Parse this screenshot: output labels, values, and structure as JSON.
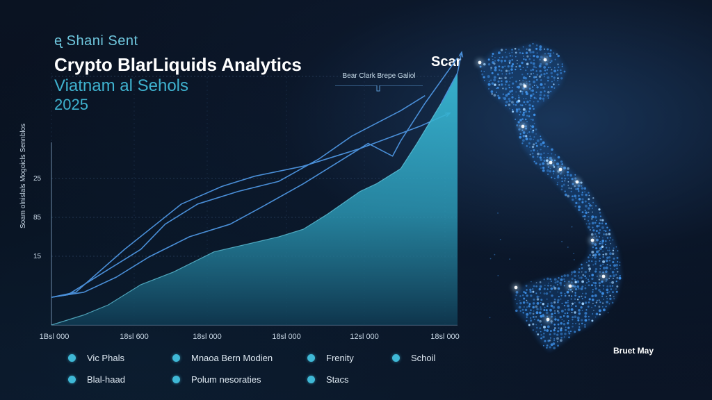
{
  "header": {
    "small_title": "ᶒ Shani Sent",
    "main_title": "Crypto BlarLiquids Analytics",
    "subtitle": "Viatnam al Sehols",
    "year": "2025"
  },
  "callout": {
    "heading": "Scar",
    "text": "Bear Clark Brepe Galiol"
  },
  "map": {
    "label": "Bruet May"
  },
  "colors": {
    "background": "#070d19",
    "line": "#4a8fd8",
    "area": "#2fa6c4",
    "dot": "#3fb8d6",
    "map_dot": "#3d8fe6"
  },
  "chart_data": {
    "type": "area",
    "ylabel": "Soam olnislals  Mogoicls Sennblos",
    "y_ticks": [
      "25",
      "85",
      "15"
    ],
    "x_ticks": [
      "1Bsl 000",
      "18sl 600",
      "18sl 000",
      "18sl 000",
      "12sl 000",
      "18sl 000"
    ],
    "xlim": [
      0,
      100
    ],
    "ylim": [
      0,
      100
    ],
    "grid": true,
    "series": [
      {
        "kind": "line",
        "arrow": true,
        "points": [
          [
            0,
            11
          ],
          [
            6,
            13
          ],
          [
            18,
            30
          ],
          [
            32,
            48
          ],
          [
            42,
            55
          ],
          [
            50,
            59
          ],
          [
            62,
            63
          ],
          [
            72,
            68
          ],
          [
            76,
            70
          ],
          [
            91,
            79
          ],
          [
            98,
            84
          ]
        ]
      },
      {
        "kind": "line",
        "arrow": false,
        "points": [
          [
            0,
            11
          ],
          [
            4,
            12
          ],
          [
            14,
            22
          ],
          [
            22,
            30
          ],
          [
            28,
            40
          ],
          [
            36,
            48
          ],
          [
            46,
            53
          ],
          [
            56,
            57
          ],
          [
            66,
            66
          ],
          [
            74,
            75
          ],
          [
            80,
            80
          ],
          [
            86,
            85
          ],
          [
            92,
            91
          ]
        ]
      },
      {
        "kind": "line",
        "arrow": false,
        "points": [
          [
            0,
            11
          ],
          [
            8,
            13
          ],
          [
            16,
            19
          ],
          [
            24,
            27
          ],
          [
            34,
            35
          ],
          [
            44,
            40
          ],
          [
            52,
            47
          ],
          [
            62,
            56
          ],
          [
            70,
            64
          ],
          [
            78,
            72
          ],
          [
            84,
            67
          ],
          [
            86,
            73
          ],
          [
            92,
            88
          ],
          [
            100,
            106
          ]
        ]
      },
      {
        "kind": "area",
        "arrow": true,
        "points": [
          [
            0,
            0
          ],
          [
            8,
            4
          ],
          [
            14,
            8
          ],
          [
            22,
            16
          ],
          [
            30,
            21
          ],
          [
            40,
            29
          ],
          [
            48,
            32
          ],
          [
            56,
            35
          ],
          [
            62,
            38
          ],
          [
            68,
            44
          ],
          [
            76,
            53
          ],
          [
            80,
            56
          ],
          [
            86,
            62
          ],
          [
            90,
            72
          ],
          [
            96,
            88
          ],
          [
            100,
            100
          ],
          [
            101,
            108
          ]
        ]
      }
    ]
  },
  "legend": [
    {
      "label": "Vic Phals"
    },
    {
      "label": "Mnaoa Bern Modien"
    },
    {
      "label": "Frenity"
    },
    {
      "label": "Schoil"
    },
    {
      "label": "Blal-haad"
    },
    {
      "label": "Polum nesoraties"
    },
    {
      "label": "Stacs"
    }
  ]
}
